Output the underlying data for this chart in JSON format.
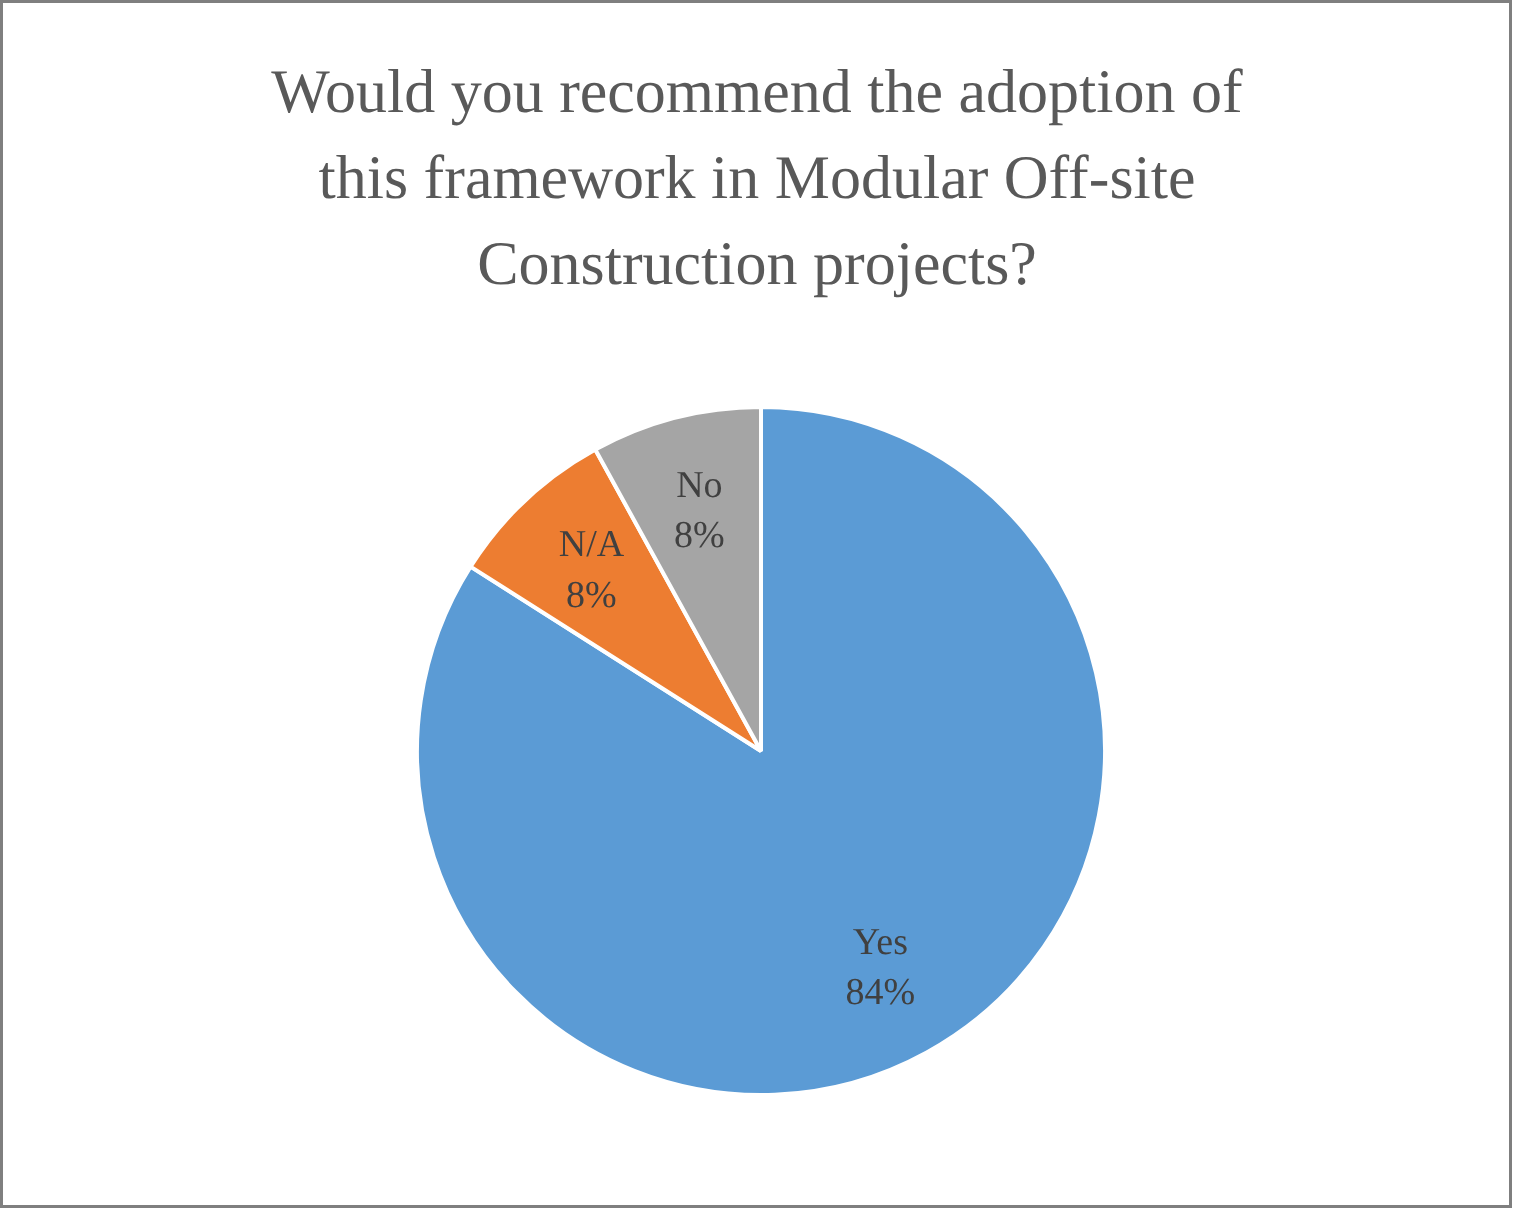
{
  "chart_data": {
    "type": "pie",
    "title": "Would you recommend the adoption of this framework in Modular Off-site Construction projects?",
    "categories": [
      "Yes",
      "N/A",
      "No"
    ],
    "values": [
      84,
      8,
      8
    ],
    "value_labels": [
      "84%",
      "8%",
      "8%"
    ],
    "colors": [
      "#5b9bd5",
      "#ed7d31",
      "#a5a5a5"
    ],
    "legend": false
  }
}
